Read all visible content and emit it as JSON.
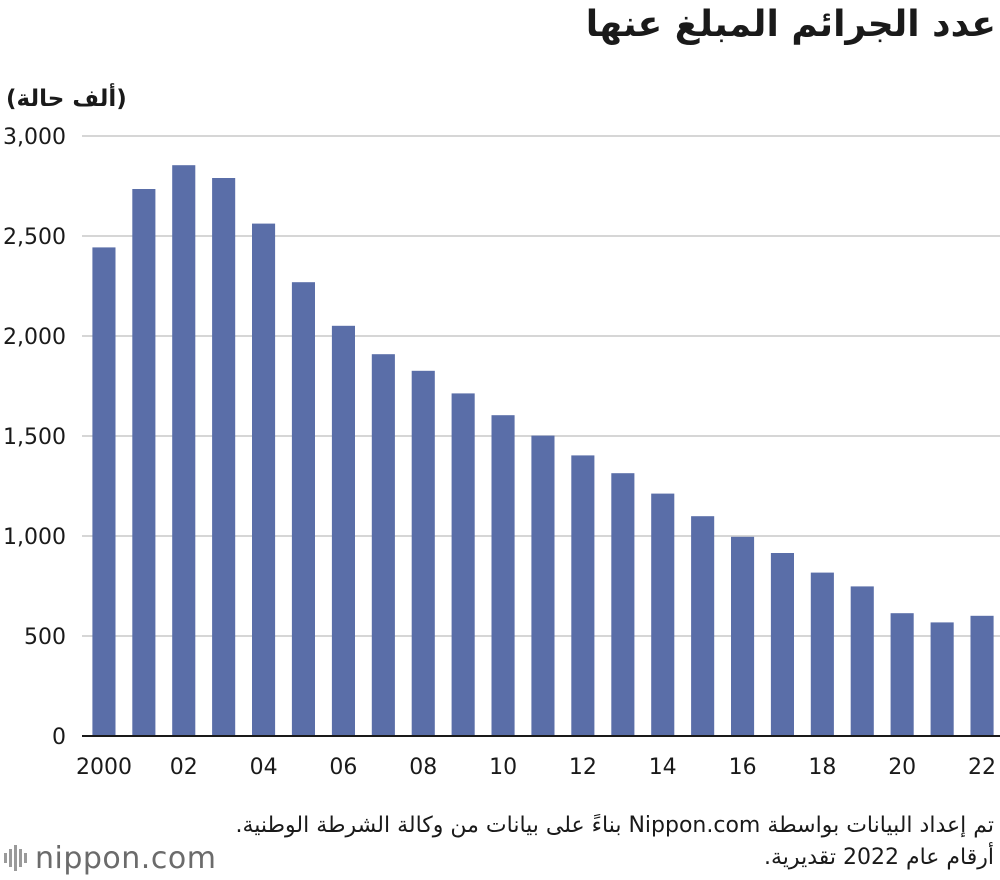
{
  "title": "عدد الجرائم المبلغ عنها",
  "unit_label": "(ألف حالة)",
  "source_note": "تم إعداد البيانات بواسطة Nippon.com بناءً على بيانات من وكالة الشرطة الوطنية. أرقام عام 2022 تقديرية.",
  "logo_text": "nippon.com",
  "colors": {
    "bar": "#5a6ea8",
    "grid": "#c8c8c8",
    "axis": "#1a1a1a"
  },
  "chart_data": {
    "type": "bar",
    "title": "عدد الجرائم المبلغ عنها",
    "ylabel": "(ألف حالة)",
    "xlabel": "",
    "ylim": [
      0,
      3000
    ],
    "yticks": [
      0,
      500,
      1000,
      1500,
      2000,
      2500,
      3000
    ],
    "ytick_labels": [
      "0",
      "500",
      "1,000",
      "1,500",
      "2,000",
      "2,500",
      "3,000"
    ],
    "grid": true,
    "categories": [
      "2000",
      "2001",
      "2002",
      "2003",
      "2004",
      "2005",
      "2006",
      "2007",
      "2008",
      "2009",
      "2010",
      "2011",
      "2012",
      "2013",
      "2014",
      "2015",
      "2016",
      "2017",
      "2018",
      "2019",
      "2020",
      "2021",
      "2022"
    ],
    "xtick_labels": [
      "2000",
      "",
      "02",
      "",
      "04",
      "",
      "06",
      "",
      "08",
      "",
      "10",
      "",
      "12",
      "",
      "14",
      "",
      "16",
      "",
      "18",
      "",
      "20",
      "",
      "22"
    ],
    "values": [
      2443,
      2735,
      2854,
      2790,
      2562,
      2269,
      2051,
      1909,
      1826,
      1713,
      1604,
      1502,
      1403,
      1314,
      1212,
      1099,
      996,
      915,
      817,
      748,
      614,
      568,
      601
    ]
  }
}
